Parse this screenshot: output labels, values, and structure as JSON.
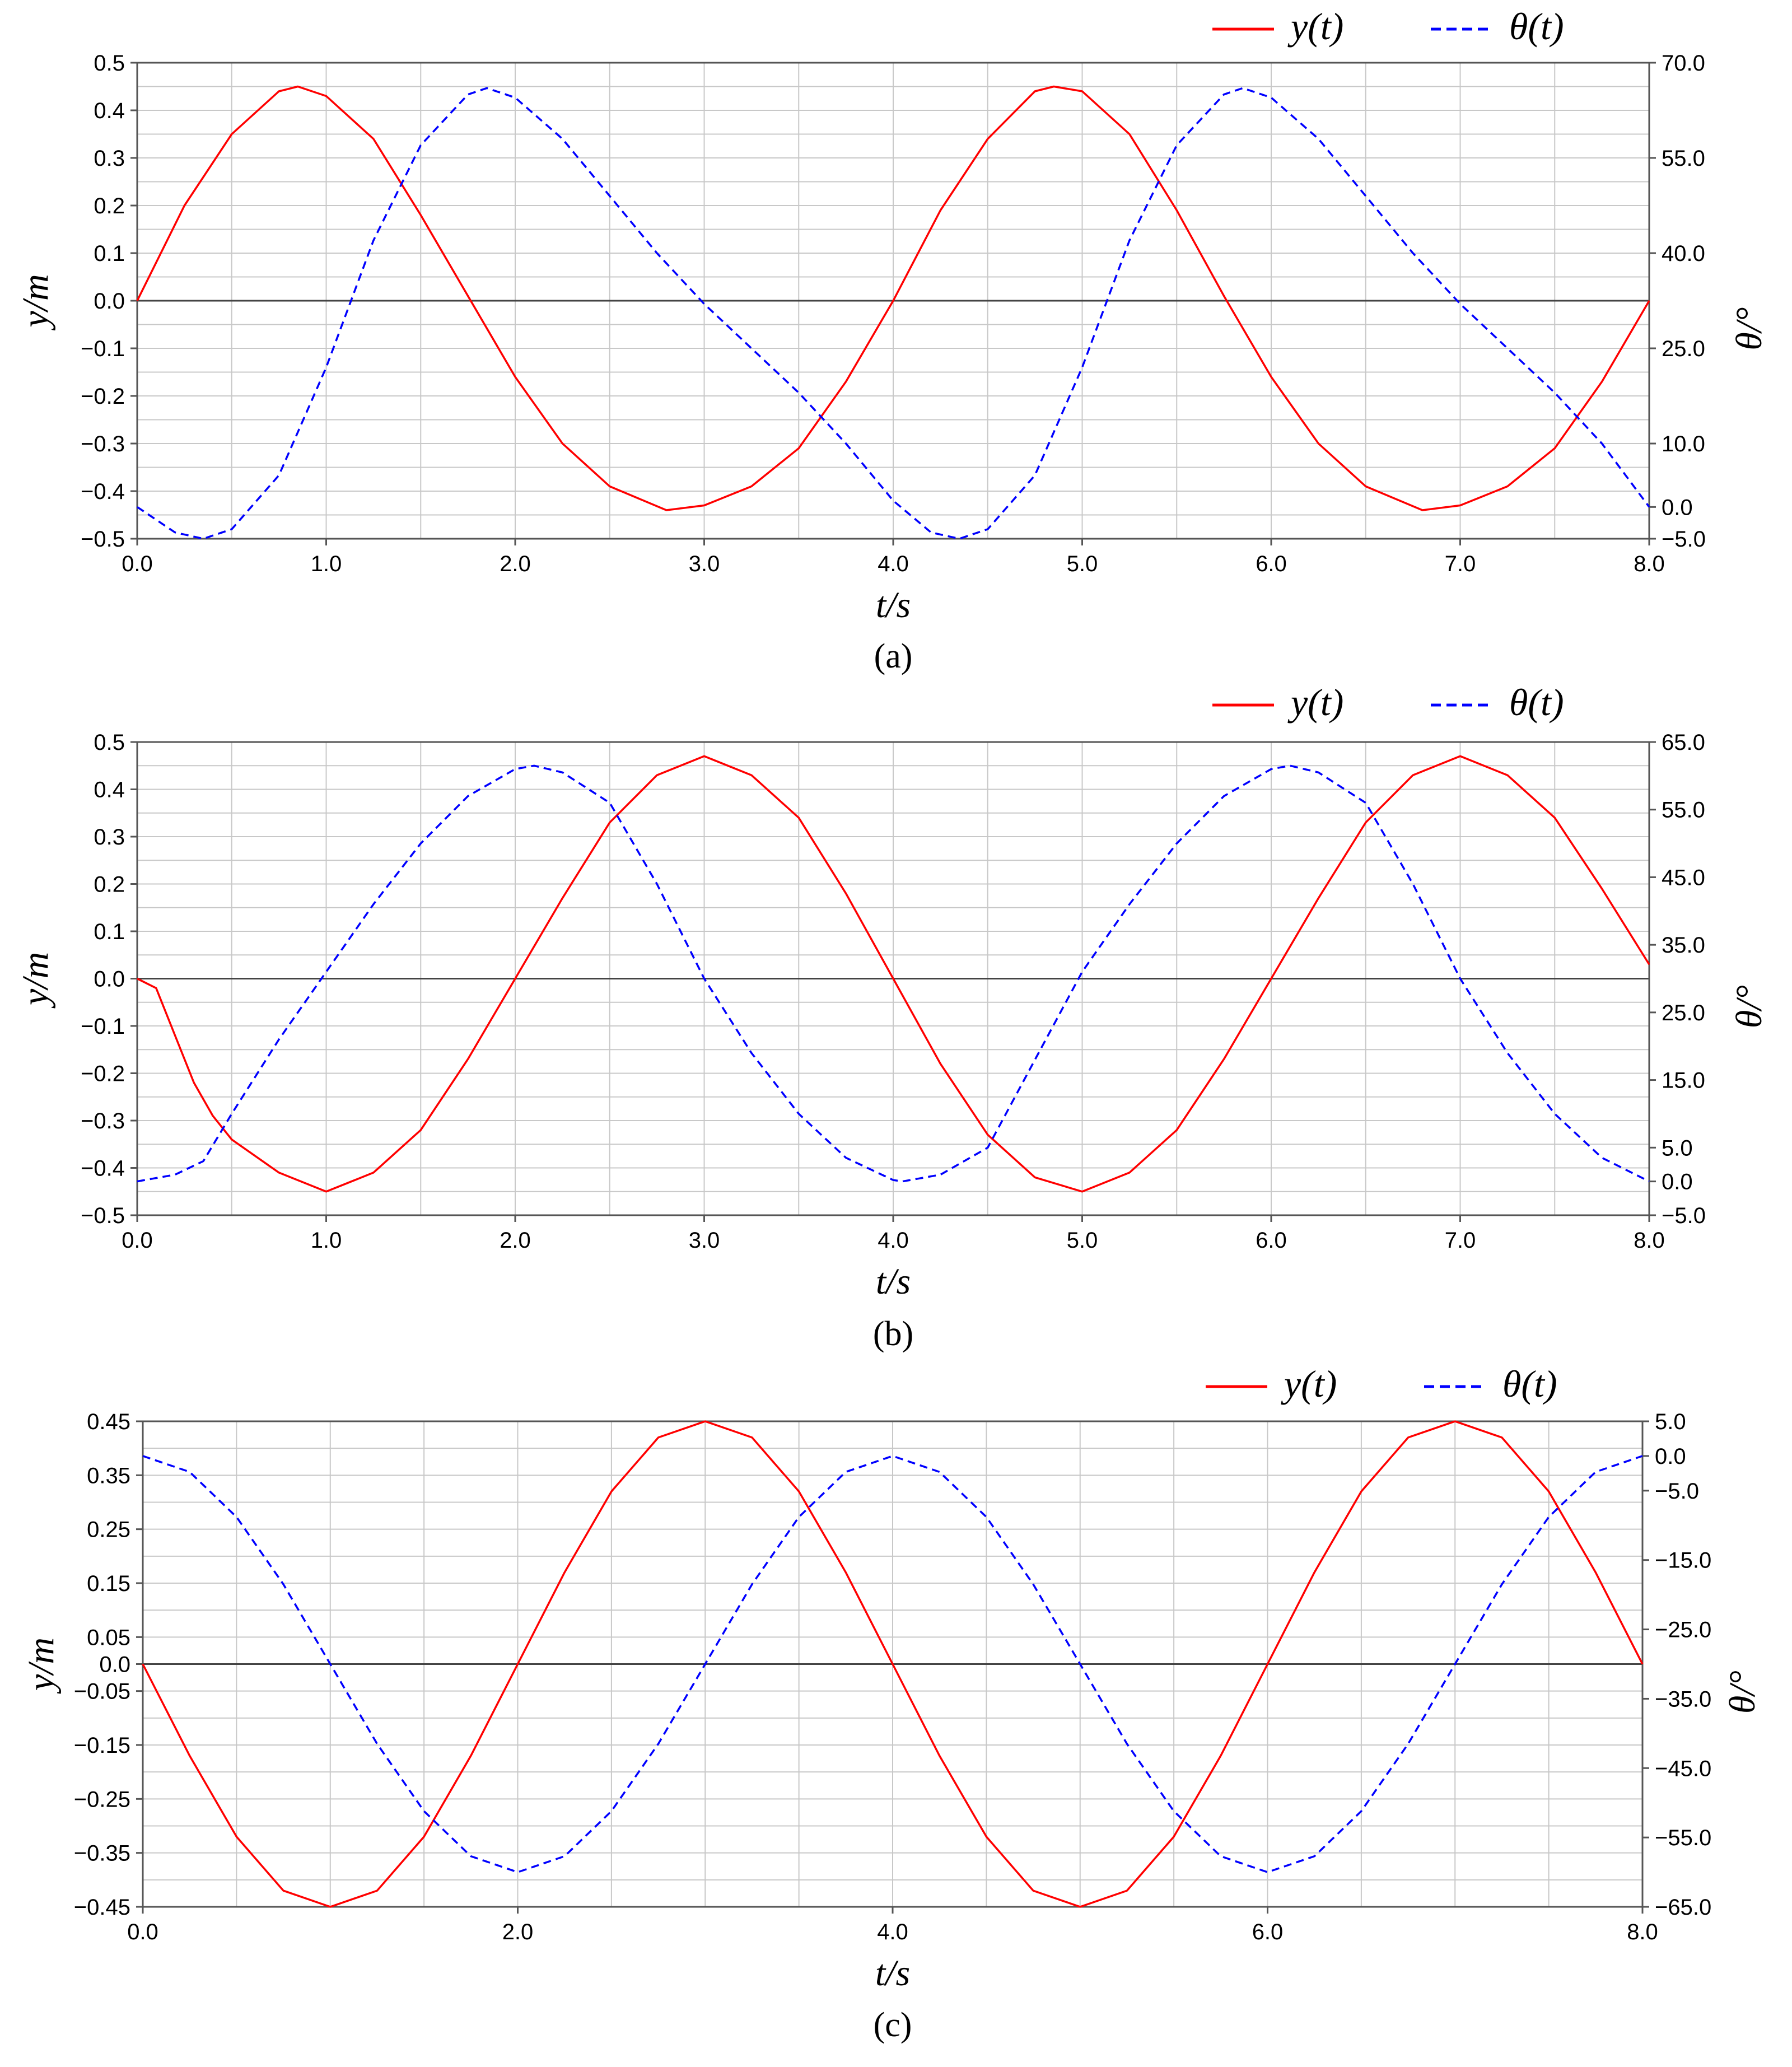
{
  "colors": {
    "y_series": "#ff0000",
    "theta_series": "#0000ff",
    "grid": "#c8c8c8",
    "zero_line": "#444444",
    "frame": "#555555"
  },
  "chart_data": [
    {
      "type": "line",
      "caption": "(a)",
      "xlabel": "t/s",
      "ylabel_left": "y/m",
      "ylabel_right": "θ/°",
      "xlim": [
        0,
        8
      ],
      "ylim_left": [
        -0.5,
        0.5
      ],
      "ylim_right": [
        -5,
        70
      ],
      "xticks": [
        "0.0",
        "1.0",
        "2.0",
        "3.0",
        "4.0",
        "5.0",
        "6.0",
        "7.0",
        "8.0"
      ],
      "yticks_left": [
        "-0.5",
        "-0.4",
        "-0.3",
        "-0.2",
        "-0.1",
        "0.0",
        "0.1",
        "0.2",
        "0.3",
        "0.4",
        "0.5"
      ],
      "yticks_right": [
        "-5.0",
        "0.0",
        "10.0",
        "25.0",
        "40.0",
        "55.0",
        "70.0"
      ],
      "grid": true,
      "legend_position": "top-right",
      "legend": [
        "y(t)",
        "θ(t)"
      ],
      "series": [
        {
          "name": "y(t)",
          "axis": "left",
          "style": "solid",
          "color": "#ff0000",
          "x": [
            0,
            0.25,
            0.5,
            0.75,
            0.85,
            1.0,
            1.25,
            1.5,
            1.75,
            2.0,
            2.25,
            2.5,
            2.8,
            3.0,
            3.25,
            3.5,
            3.75,
            4.0,
            4.25,
            4.5,
            4.75,
            4.85,
            5.0,
            5.25,
            5.5,
            5.75,
            6.0,
            6.25,
            6.5,
            6.8,
            7.0,
            7.25,
            7.5,
            7.75,
            8.0
          ],
          "y": [
            0.0,
            0.2,
            0.35,
            0.44,
            0.45,
            0.43,
            0.34,
            0.18,
            0.01,
            -0.16,
            -0.3,
            -0.39,
            -0.44,
            -0.43,
            -0.39,
            -0.31,
            -0.17,
            0.0,
            0.19,
            0.34,
            0.44,
            0.45,
            0.44,
            0.35,
            0.19,
            0.01,
            -0.16,
            -0.3,
            -0.39,
            -0.44,
            -0.43,
            -0.39,
            -0.31,
            -0.17,
            0.0
          ]
        },
        {
          "name": "θ(t)",
          "axis": "right",
          "style": "dashed",
          "color": "#0000ff",
          "x": [
            0,
            0.2,
            0.35,
            0.5,
            0.75,
            1.0,
            1.25,
            1.5,
            1.75,
            1.85,
            2.0,
            2.25,
            2.5,
            2.75,
            3.0,
            3.25,
            3.5,
            3.75,
            4.0,
            4.2,
            4.35,
            4.5,
            4.75,
            5.0,
            5.25,
            5.5,
            5.75,
            5.85,
            6.0,
            6.25,
            6.5,
            6.75,
            7.0,
            7.25,
            7.5,
            7.75,
            8.0
          ],
          "y": [
            0.0,
            -4.0,
            -5.0,
            -3.5,
            5.0,
            22.0,
            42.0,
            57.0,
            65.0,
            66.0,
            64.5,
            58.0,
            49.0,
            40.0,
            32.0,
            25.0,
            18.0,
            10.0,
            1.0,
            -4.0,
            -5.0,
            -3.5,
            5.0,
            22.0,
            42.0,
            57.0,
            65.0,
            66.0,
            64.5,
            58.0,
            49.0,
            40.0,
            32.0,
            25.0,
            18.0,
            10.0,
            0.0
          ]
        }
      ]
    },
    {
      "type": "line",
      "caption": "(b)",
      "xlabel": "t/s",
      "ylabel_left": "y/m",
      "ylabel_right": "θ/°",
      "xlim": [
        0,
        8
      ],
      "ylim_left": [
        -0.5,
        0.5
      ],
      "ylim_right": [
        -5,
        65
      ],
      "xticks": [
        "0.0",
        "1.0",
        "2.0",
        "3.0",
        "4.0",
        "5.0",
        "6.0",
        "7.0",
        "8.0"
      ],
      "yticks_left": [
        "-0.5",
        "-0.4",
        "-0.3",
        "-0.2",
        "-0.1",
        "0.0",
        "0.1",
        "0.2",
        "0.3",
        "0.4",
        "0.5"
      ],
      "yticks_right": [
        "-5.0",
        "0.0",
        "5.0",
        "15.0",
        "25.0",
        "35.0",
        "45.0",
        "55.0",
        "65.0"
      ],
      "grid": true,
      "legend_position": "top-right",
      "legend": [
        "y(t)",
        "θ(t)"
      ],
      "series": [
        {
          "name": "y(t)",
          "axis": "left",
          "style": "solid",
          "color": "#ff0000",
          "x": [
            0,
            0.1,
            0.2,
            0.3,
            0.4,
            0.5,
            0.75,
            1.0,
            1.25,
            1.5,
            1.75,
            2.0,
            2.25,
            2.5,
            2.75,
            3.0,
            3.25,
            3.5,
            3.75,
            4.0,
            4.25,
            4.5,
            4.75,
            5.0,
            5.25,
            5.5,
            5.75,
            6.0,
            6.25,
            6.5,
            6.75,
            7.0,
            7.25,
            7.5,
            7.75,
            8.0
          ],
          "y": [
            0.0,
            -0.02,
            -0.12,
            -0.22,
            -0.29,
            -0.34,
            -0.41,
            -0.45,
            -0.41,
            -0.32,
            -0.17,
            0.0,
            0.17,
            0.33,
            0.43,
            0.47,
            0.43,
            0.34,
            0.18,
            0.0,
            -0.18,
            -0.33,
            -0.42,
            -0.45,
            -0.41,
            -0.32,
            -0.17,
            0.0,
            0.17,
            0.33,
            0.43,
            0.47,
            0.43,
            0.34,
            0.19,
            0.03
          ]
        },
        {
          "name": "θ(t)",
          "axis": "right",
          "style": "dashed",
          "color": "#0000ff",
          "x": [
            0,
            0.2,
            0.35,
            0.5,
            0.75,
            1.0,
            1.25,
            1.5,
            1.75,
            2.0,
            2.1,
            2.25,
            2.5,
            2.75,
            3.0,
            3.25,
            3.5,
            3.75,
            4.0,
            4.05,
            4.25,
            4.5,
            4.75,
            5.0,
            5.25,
            5.5,
            5.75,
            6.0,
            6.1,
            6.25,
            6.5,
            6.75,
            7.0,
            7.25,
            7.5,
            7.75,
            8.0
          ],
          "y": [
            0.0,
            1.0,
            3.0,
            10.0,
            21.0,
            31.0,
            41.0,
            50.0,
            57.0,
            61.0,
            61.5,
            60.5,
            56.0,
            44.0,
            30.0,
            19.0,
            10.0,
            3.5,
            0.2,
            0.0,
            1.0,
            5.0,
            18.0,
            31.0,
            41.0,
            50.0,
            57.0,
            61.0,
            61.5,
            60.5,
            56.0,
            44.0,
            30.0,
            19.0,
            10.0,
            3.5,
            0.0
          ]
        }
      ]
    },
    {
      "type": "line",
      "caption": "(c)",
      "xlabel": "t/s",
      "ylabel_left": "y/m",
      "ylabel_right": "θ/°",
      "xlim": [
        0,
        8
      ],
      "ylim_left": [
        -0.45,
        0.45
      ],
      "ylim_right": [
        -65,
        5
      ],
      "xticks": [
        "0.0",
        "2.0",
        "4.0",
        "6.0",
        "8.0"
      ],
      "yticks_left": [
        "-0.45",
        "-0.35",
        "-0.25",
        "-0.15",
        "-0.05",
        "0.0",
        "0.05",
        "0.15",
        "0.25",
        "0.35",
        "0.45"
      ],
      "yticks_right": [
        "-65.0",
        "-55.0",
        "-45.0",
        "-35.0",
        "-25.0",
        "-15.0",
        "-5.0",
        "0.0",
        "5.0"
      ],
      "grid": true,
      "legend_position": "top-right",
      "legend": [
        "y(t)",
        "θ(t)"
      ],
      "series": [
        {
          "name": "y(t)",
          "axis": "left",
          "style": "solid",
          "color": "#ff0000",
          "x": [
            0,
            0.25,
            0.5,
            0.75,
            1.0,
            1.25,
            1.5,
            1.75,
            2.0,
            2.25,
            2.5,
            2.75,
            3.0,
            3.25,
            3.5,
            3.75,
            4.0,
            4.25,
            4.5,
            4.75,
            5.0,
            5.25,
            5.5,
            5.75,
            6.0,
            6.25,
            6.5,
            6.75,
            7.0,
            7.25,
            7.5,
            7.75,
            8.0
          ],
          "y": [
            0.0,
            -0.17,
            -0.32,
            -0.42,
            -0.45,
            -0.42,
            -0.32,
            -0.17,
            0.0,
            0.17,
            0.32,
            0.42,
            0.45,
            0.42,
            0.32,
            0.17,
            0.0,
            -0.17,
            -0.32,
            -0.42,
            -0.45,
            -0.42,
            -0.32,
            -0.17,
            0.0,
            0.17,
            0.32,
            0.42,
            0.45,
            0.42,
            0.32,
            0.17,
            0.0
          ]
        },
        {
          "name": "θ(t)",
          "axis": "right",
          "style": "dashed",
          "color": "#0000ff",
          "x": [
            0,
            0.25,
            0.5,
            0.75,
            1.0,
            1.25,
            1.5,
            1.75,
            2.0,
            2.25,
            2.5,
            2.75,
            3.0,
            3.25,
            3.5,
            3.75,
            4.0,
            4.25,
            4.5,
            4.75,
            5.0,
            5.25,
            5.5,
            5.75,
            6.0,
            6.25,
            6.5,
            6.75,
            7.0,
            7.25,
            7.5,
            7.75,
            8.0
          ],
          "y": [
            0.0,
            -2.3,
            -8.8,
            -18.5,
            -30.0,
            -41.5,
            -51.2,
            -57.7,
            -60.0,
            -57.7,
            -51.2,
            -41.5,
            -30.0,
            -18.5,
            -8.8,
            -2.3,
            0.0,
            -2.3,
            -8.8,
            -18.5,
            -30.0,
            -41.5,
            -51.2,
            -57.7,
            -60.0,
            -57.7,
            -51.2,
            -41.5,
            -30.0,
            -18.5,
            -8.8,
            -2.3,
            0.0
          ]
        }
      ]
    }
  ]
}
